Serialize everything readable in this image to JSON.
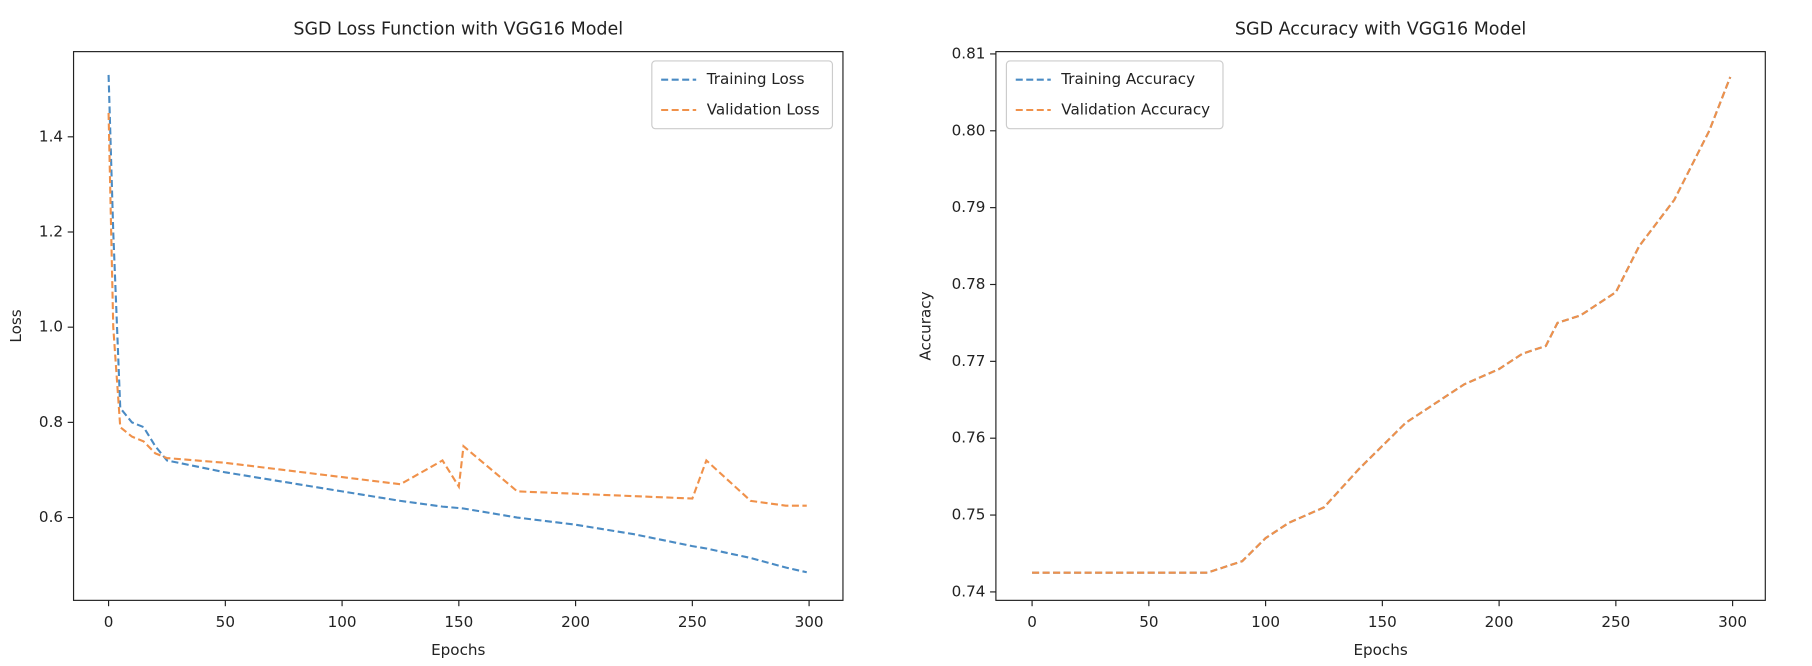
{
  "chart_data": [
    {
      "type": "line",
      "title": "SGD Loss Function with VGG16 Model",
      "x_label": "Epochs",
      "y_label": "Loss",
      "x": [
        0,
        2,
        5,
        10,
        15,
        20,
        25,
        50,
        75,
        100,
        125,
        143,
        150,
        152,
        175,
        200,
        225,
        250,
        256,
        275,
        290,
        299
      ],
      "series": [
        {
          "name": "Training Loss",
          "color": "#4a8bc4",
          "values": [
            1.53,
            1.2,
            0.83,
            0.8,
            0.79,
            0.75,
            0.72,
            0.695,
            0.675,
            0.655,
            0.635,
            0.623,
            0.62,
            0.619,
            0.6,
            0.585,
            0.565,
            0.54,
            0.535,
            0.515,
            0.495,
            0.485
          ]
        },
        {
          "name": "Validation Loss",
          "color": "#f0914a",
          "values": [
            1.45,
            1.0,
            0.79,
            0.77,
            0.76,
            0.735,
            0.725,
            0.715,
            0.7,
            0.685,
            0.67,
            0.72,
            0.665,
            0.75,
            0.655,
            0.65,
            0.645,
            0.64,
            0.72,
            0.635,
            0.625,
            0.625
          ]
        }
      ],
      "xlim": [
        -15,
        314.5
      ],
      "ylim": [
        0.426,
        1.579
      ],
      "xticks": [
        0,
        50,
        100,
        150,
        200,
        250,
        300
      ],
      "yticks": [
        0.6,
        0.8,
        {
          "value": 1,
          "label": "1.0"
        },
        1.2,
        1.4
      ],
      "legend": "upper right"
    },
    {
      "type": "line",
      "title": "SGD Accuracy with VGG16 Model",
      "x_label": "Epochs",
      "y_label": "Accuracy",
      "x": [
        0,
        75,
        90,
        100,
        110,
        125,
        140,
        150,
        160,
        175,
        185,
        200,
        210,
        220,
        225,
        235,
        250,
        260,
        275,
        290,
        299
      ],
      "series": [
        {
          "name": "Training Accuracy",
          "color": "#4a8bc4",
          "values": [
            0.7425,
            0.7425,
            0.744,
            0.747,
            0.749,
            0.751,
            0.756,
            0.759,
            0.762,
            0.765,
            0.767,
            0.769,
            0.771,
            0.772,
            0.775,
            0.776,
            0.779,
            0.785,
            0.791,
            0.8,
            0.807
          ]
        },
        {
          "name": "Validation Accuracy",
          "color": "#f0914a",
          "values": [
            0.7425,
            0.7425,
            0.744,
            0.747,
            0.749,
            0.751,
            0.756,
            0.759,
            0.762,
            0.765,
            0.767,
            0.769,
            0.771,
            0.772,
            0.775,
            0.776,
            0.779,
            0.785,
            0.791,
            0.8,
            0.807
          ]
        }
      ],
      "xlim": [
        -15.5,
        314
      ],
      "ylim": [
        0.7389,
        0.8103
      ],
      "xticks": [
        0,
        50,
        100,
        150,
        200,
        250,
        300
      ],
      "yticks": [
        0.74,
        0.75,
        0.76,
        0.77,
        0.78,
        0.79,
        {
          "value": 0.8,
          "label": "0.80"
        },
        0.81
      ],
      "legend": "upper left"
    }
  ]
}
